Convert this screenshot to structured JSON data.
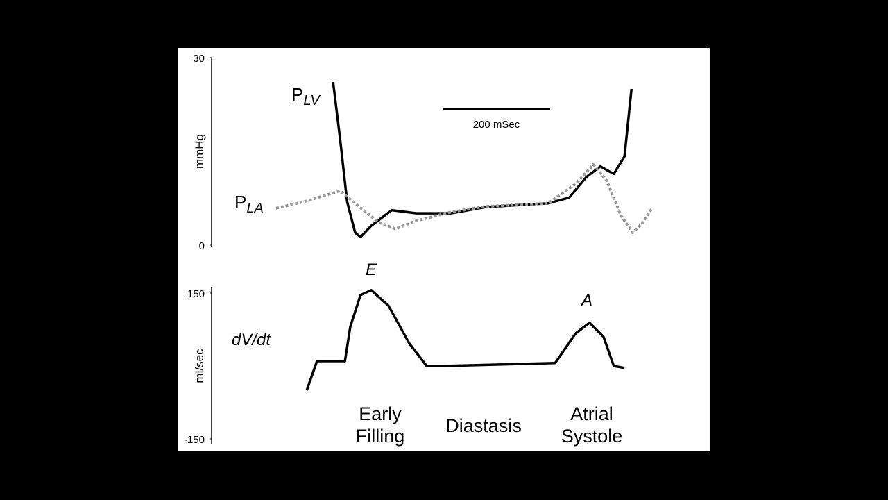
{
  "chart_data": [
    {
      "type": "line",
      "y_label": "mmHg",
      "ylim": [
        0,
        30
      ],
      "yticks": [
        0,
        30
      ],
      "xlim": [
        0,
        700
      ],
      "scale_bar": {
        "value": 200,
        "label": "200 mSec"
      },
      "series": [
        {
          "label_main": "P",
          "label_sub": "LV",
          "color": "#000000",
          "style": "solid",
          "x": [
            106,
            119,
            132,
            147,
            157,
            177,
            215,
            261,
            325,
            390,
            506,
            545,
            577,
            603,
            628,
            648,
            654,
            661
          ],
          "values": [
            26.1,
            17,
            7,
            2,
            1.3,
            3.1,
            5.6,
            5.1,
            5.1,
            6.1,
            6.7,
            7.6,
            10.9,
            12.6,
            11.4,
            14.2,
            19.2,
            25
          ]
        },
        {
          "label_main": "P",
          "label_sub": "LA",
          "color": "#999999",
          "style": "dotted",
          "x": [
            0,
            54,
            119,
            151,
            190,
            222,
            261,
            325,
            390,
            506,
            557,
            590,
            615,
            641,
            663,
            680,
            699
          ],
          "values": [
            5.9,
            7,
            8.7,
            6.4,
            3.7,
            2.6,
            3.9,
            5.3,
            6.2,
            6.7,
            9.8,
            12.9,
            10.3,
            4.8,
            2,
            3.4,
            5.9
          ]
        }
      ]
    },
    {
      "type": "line",
      "y_label": "ml/sec",
      "series_label": "dV/dt",
      "ylim": [
        -150,
        150
      ],
      "yticks": [
        -150,
        150
      ],
      "xlim": [
        0,
        700
      ],
      "series": [
        {
          "color": "#000000",
          "style": "solid",
          "x": [
            57,
            76,
            128,
            138,
            157,
            177,
            209,
            248,
            280,
            312,
            519,
            557,
            583,
            609,
            628,
            648
          ],
          "values": [
            -50,
            10,
            10,
            81,
            146,
            156,
            124,
            46,
            0,
            0,
            6,
            67,
            89,
            60,
            0,
            -4
          ]
        }
      ],
      "peak_labels": [
        "E",
        "A"
      ],
      "phases": [
        [
          "Early",
          "Filling"
        ],
        [
          "Diastasis"
        ],
        [
          "Atrial",
          "Systole"
        ]
      ]
    }
  ]
}
